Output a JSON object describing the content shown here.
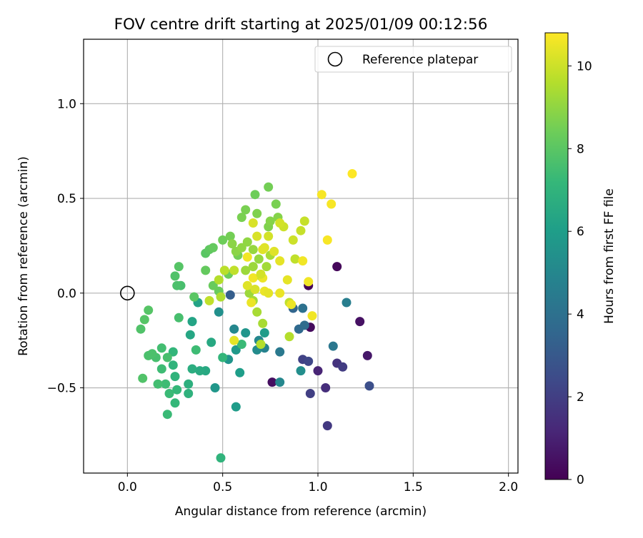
{
  "chart_data": {
    "type": "scatter",
    "title": "FOV centre drift starting at 2025/01/09 00:12:56",
    "xlabel": "Angular distance from reference (arcmin)",
    "ylabel": "Rotation from reference (arcmin)",
    "xlim": [
      -0.23,
      2.05
    ],
    "ylim": [
      -0.95,
      1.34
    ],
    "xticks": [
      0.0,
      0.5,
      1.0,
      1.5,
      2.0
    ],
    "xtick_labels": [
      "0.0",
      "0.5",
      "1.0",
      "1.5",
      "2.0"
    ],
    "yticks": [
      -0.5,
      0.0,
      0.5,
      1.0
    ],
    "ytick_labels": [
      "−0.5",
      "0.0",
      "0.5",
      "1.0"
    ],
    "grid": true,
    "legend": {
      "location": "upper right",
      "entries": [
        {
          "label": "Reference platepar",
          "marker": "open-circle"
        }
      ]
    },
    "reference_point": {
      "x": 0.0,
      "y": 0.0
    },
    "colorbar": {
      "label": "Hours from first FF file",
      "colormap": "viridis",
      "range": [
        0,
        10.8
      ],
      "ticks": [
        0,
        2,
        4,
        6,
        8,
        10
      ],
      "tick_labels": [
        "0",
        "2",
        "4",
        "6",
        "8",
        "10"
      ]
    },
    "points": [
      [
        0.95,
        0.04,
        0.1
      ],
      [
        1.1,
        0.14,
        0.2
      ],
      [
        0.96,
        -0.18,
        0.3
      ],
      [
        0.76,
        -0.47,
        0.4
      ],
      [
        1.22,
        -0.15,
        0.5
      ],
      [
        1.26,
        -0.33,
        0.7
      ],
      [
        1.0,
        -0.41,
        1.1
      ],
      [
        1.04,
        -0.5,
        1.4
      ],
      [
        1.1,
        -0.37,
        1.6
      ],
      [
        1.13,
        -0.39,
        1.9
      ],
      [
        1.05,
        -0.7,
        1.8
      ],
      [
        0.96,
        -0.53,
        2.0
      ],
      [
        0.92,
        -0.35,
        2.1
      ],
      [
        0.95,
        -0.36,
        2.3
      ],
      [
        1.27,
        -0.49,
        2.6
      ],
      [
        0.54,
        -0.01,
        3.2
      ],
      [
        0.87,
        -0.08,
        3.5
      ],
      [
        0.9,
        -0.19,
        3.7
      ],
      [
        0.93,
        -0.17,
        3.8
      ],
      [
        0.92,
        -0.08,
        4.0
      ],
      [
        1.08,
        -0.28,
        4.3
      ],
      [
        1.15,
        -0.05,
        4.6
      ],
      [
        0.8,
        -0.31,
        4.4
      ],
      [
        0.72,
        -0.29,
        4.8
      ],
      [
        0.69,
        -0.25,
        5.0
      ],
      [
        0.68,
        -0.3,
        5.2
      ],
      [
        0.8,
        -0.47,
        5.0
      ],
      [
        0.91,
        -0.41,
        5.3
      ],
      [
        0.56,
        -0.19,
        5.0
      ],
      [
        0.48,
        -0.1,
        5.4
      ],
      [
        0.53,
        -0.35,
        5.6
      ],
      [
        0.46,
        -0.5,
        5.7
      ],
      [
        0.57,
        -0.3,
        5.8
      ],
      [
        0.62,
        -0.21,
        5.6
      ],
      [
        0.72,
        -0.21,
        5.9
      ],
      [
        0.59,
        -0.42,
        6.0
      ],
      [
        0.57,
        -0.6,
        5.9
      ],
      [
        0.37,
        -0.05,
        6.2
      ],
      [
        0.34,
        -0.15,
        6.3
      ],
      [
        0.33,
        -0.22,
        6.4
      ],
      [
        0.44,
        -0.26,
        6.5
      ],
      [
        0.41,
        -0.41,
        6.5
      ],
      [
        0.38,
        -0.41,
        6.6
      ],
      [
        0.34,
        -0.4,
        6.7
      ],
      [
        0.32,
        -0.48,
        6.8
      ],
      [
        0.32,
        -0.53,
        6.9
      ],
      [
        0.25,
        -0.44,
        7.0
      ],
      [
        0.24,
        -0.38,
        7.0
      ],
      [
        0.24,
        -0.31,
        7.1
      ],
      [
        0.26,
        -0.51,
        7.2
      ],
      [
        0.25,
        -0.58,
        7.2
      ],
      [
        0.22,
        -0.53,
        7.3
      ],
      [
        0.21,
        -0.64,
        7.3
      ],
      [
        0.2,
        -0.48,
        7.4
      ],
      [
        0.18,
        -0.4,
        7.4
      ],
      [
        0.16,
        -0.48,
        7.5
      ],
      [
        0.18,
        -0.29,
        7.5
      ],
      [
        0.21,
        -0.34,
        7.6
      ],
      [
        0.15,
        -0.34,
        7.6
      ],
      [
        0.13,
        -0.32,
        7.7
      ],
      [
        0.11,
        -0.33,
        7.7
      ],
      [
        0.08,
        -0.45,
        7.8
      ],
      [
        0.07,
        -0.19,
        7.8
      ],
      [
        0.09,
        -0.14,
        7.9
      ],
      [
        0.11,
        -0.09,
        7.9
      ],
      [
        0.49,
        -0.87,
        7.0
      ],
      [
        0.5,
        -0.34,
        7.1
      ],
      [
        0.6,
        -0.27,
        7.3
      ],
      [
        0.36,
        -0.3,
        7.4
      ],
      [
        0.27,
        -0.13,
        7.6
      ],
      [
        0.28,
        0.04,
        7.6
      ],
      [
        0.26,
        0.04,
        7.7
      ],
      [
        0.25,
        0.09,
        7.8
      ],
      [
        0.27,
        0.14,
        7.9
      ],
      [
        0.35,
        -0.02,
        8.0
      ],
      [
        0.41,
        0.21,
        8.0
      ],
      [
        0.43,
        0.23,
        8.1
      ],
      [
        0.45,
        0.24,
        8.2
      ],
      [
        0.41,
        0.12,
        8.2
      ],
      [
        0.45,
        0.04,
        8.3
      ],
      [
        0.48,
        0.01,
        8.3
      ],
      [
        0.53,
        0.1,
        8.4
      ],
      [
        0.5,
        0.28,
        8.4
      ],
      [
        0.54,
        0.3,
        8.5
      ],
      [
        0.58,
        0.2,
        8.5
      ],
      [
        0.6,
        0.4,
        8.6
      ],
      [
        0.62,
        0.44,
        8.6
      ],
      [
        0.67,
        0.52,
        8.4
      ],
      [
        0.74,
        0.56,
        8.5
      ],
      [
        0.78,
        0.47,
        8.6
      ],
      [
        0.68,
        0.42,
        8.7
      ],
      [
        0.74,
        0.35,
        8.7
      ],
      [
        0.75,
        0.38,
        8.8
      ],
      [
        0.79,
        0.4,
        8.8
      ],
      [
        0.55,
        0.26,
        8.9
      ],
      [
        0.57,
        0.22,
        8.9
      ],
      [
        0.6,
        0.24,
        9.0
      ],
      [
        0.63,
        0.27,
        9.0
      ],
      [
        0.66,
        0.23,
        9.1
      ],
      [
        0.69,
        0.18,
        9.1
      ],
      [
        0.62,
        0.12,
        9.2
      ],
      [
        0.66,
        0.14,
        9.2
      ],
      [
        0.7,
        0.09,
        9.3
      ],
      [
        0.73,
        0.14,
        9.3
      ],
      [
        0.75,
        0.2,
        9.4
      ],
      [
        0.64,
        0.0,
        9.2
      ],
      [
        0.66,
        -0.04,
        9.3
      ],
      [
        0.68,
        -0.1,
        9.4
      ],
      [
        0.71,
        -0.16,
        9.4
      ],
      [
        0.7,
        -0.27,
        9.6
      ],
      [
        0.85,
        -0.23,
        9.6
      ],
      [
        0.85,
        -0.05,
        9.8
      ],
      [
        0.88,
        0.18,
        9.8
      ],
      [
        0.91,
        0.33,
        9.9
      ],
      [
        0.93,
        0.38,
        9.9
      ],
      [
        0.87,
        0.28,
        10.0
      ],
      [
        0.82,
        0.35,
        10.0
      ],
      [
        0.8,
        0.37,
        10.1
      ],
      [
        0.74,
        0.3,
        10.1
      ],
      [
        0.68,
        0.3,
        10.2
      ],
      [
        0.66,
        0.37,
        10.2
      ],
      [
        0.72,
        0.24,
        10.3
      ],
      [
        0.77,
        0.22,
        10.3
      ],
      [
        0.8,
        0.17,
        10.4
      ],
      [
        0.84,
        0.07,
        10.4
      ],
      [
        0.8,
        -0.0,
        10.5
      ],
      [
        0.86,
        -0.06,
        10.5
      ],
      [
        0.92,
        0.17,
        10.6
      ],
      [
        0.95,
        0.06,
        10.6
      ],
      [
        0.97,
        -0.12,
        10.6
      ],
      [
        1.02,
        0.52,
        10.7
      ],
      [
        1.07,
        0.47,
        10.7
      ],
      [
        1.18,
        0.63,
        10.8
      ],
      [
        1.05,
        0.28,
        10.7
      ],
      [
        0.63,
        0.19,
        10.6
      ],
      [
        0.66,
        0.08,
        10.6
      ],
      [
        0.71,
        0.08,
        10.5
      ],
      [
        0.72,
        0.01,
        10.5
      ],
      [
        0.74,
        -0.0,
        10.4
      ],
      [
        0.63,
        0.04,
        10.3
      ],
      [
        0.67,
        0.02,
        10.2
      ],
      [
        0.7,
        0.1,
        10.1
      ],
      [
        0.56,
        0.12,
        9.8
      ],
      [
        0.51,
        0.12,
        9.7
      ],
      [
        0.48,
        0.07,
        9.6
      ],
      [
        0.49,
        -0.02,
        9.5
      ],
      [
        0.43,
        -0.04,
        9.8
      ],
      [
        0.56,
        -0.25,
        10.4
      ],
      [
        0.65,
        -0.05,
        10.5
      ],
      [
        0.71,
        0.23,
        10.3
      ]
    ]
  }
}
